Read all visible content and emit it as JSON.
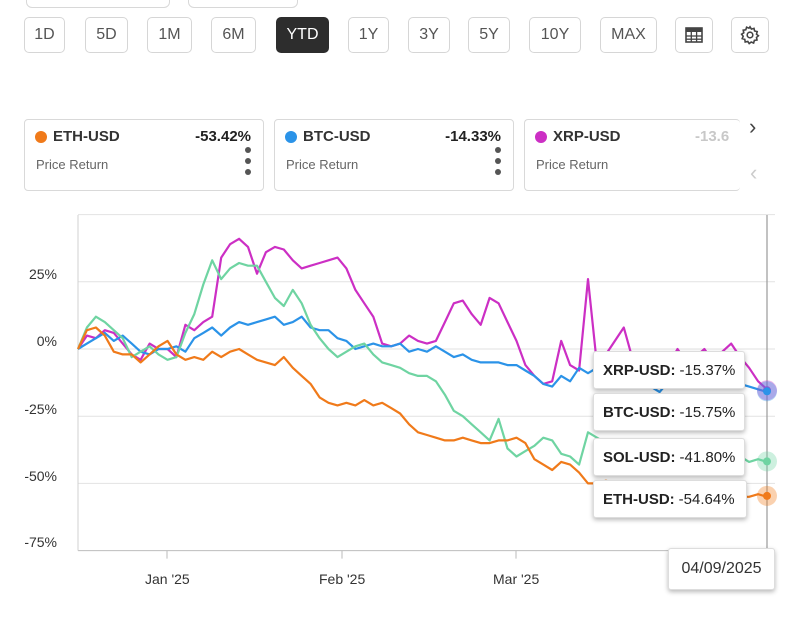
{
  "ranges": [
    {
      "label": "1D",
      "active": false
    },
    {
      "label": "5D",
      "active": false
    },
    {
      "label": "1M",
      "active": false
    },
    {
      "label": "6M",
      "active": false
    },
    {
      "label": "YTD",
      "active": true
    },
    {
      "label": "1Y",
      "active": false
    },
    {
      "label": "3Y",
      "active": false
    },
    {
      "label": "5Y",
      "active": false
    },
    {
      "label": "10Y",
      "active": false
    },
    {
      "label": "MAX",
      "active": false
    }
  ],
  "toolbar": {
    "table_icon": "table-icon",
    "settings_icon": "gear-icon"
  },
  "cards": [
    {
      "symbol": "ETH-USD",
      "value": "-53.42%",
      "metric": "Price Return",
      "color": "#f07a1a"
    },
    {
      "symbol": "BTC-USD",
      "value": "-14.33%",
      "metric": "Price Return",
      "color": "#2b93e8"
    },
    {
      "symbol": "XRP-USD",
      "value": "-13.6",
      "metric": "Price Return",
      "color": "#cc2fc4"
    }
  ],
  "nav": {
    "next": "›",
    "prev": "‹"
  },
  "tooltip": {
    "items": [
      {
        "symbol": "XRP-USD:",
        "value": "-15.37%"
      },
      {
        "symbol": "BTC-USD:",
        "value": "-15.75%"
      },
      {
        "symbol": "SOL-USD:",
        "value": "-41.80%"
      },
      {
        "symbol": "ETH-USD:",
        "value": "-54.64%"
      }
    ],
    "date": "04/09/2025"
  },
  "chart_data": {
    "type": "line",
    "x_ticks": [
      "Jan '25",
      "Feb '25",
      "Mar '25"
    ],
    "y_ticks": [
      "25%",
      "0%",
      "-25%",
      "-50%",
      "-75%"
    ],
    "y_tick_values": [
      25,
      0,
      -25,
      -50,
      -75
    ],
    "ylim": [
      -75,
      50
    ],
    "grid": true,
    "series": [
      {
        "name": "XRP-USD",
        "color": "#cc2fc4",
        "values": [
          0,
          5,
          4,
          7,
          6,
          2,
          -2,
          -4,
          2,
          0,
          0,
          -3,
          9,
          7,
          10,
          12,
          34,
          39,
          41,
          38,
          28,
          36,
          38,
          37,
          33,
          30,
          31,
          32,
          33,
          34,
          30,
          22,
          17,
          12,
          2,
          1,
          2,
          5,
          3,
          2,
          3,
          10,
          17,
          18,
          13,
          9,
          19,
          17,
          10,
          3,
          -6,
          -10,
          -13,
          -12,
          3,
          -6,
          -8,
          26,
          -6,
          -2,
          3,
          8,
          -4,
          -4,
          -13,
          -11,
          -6,
          0,
          -5,
          -3,
          0,
          -5,
          -1,
          2,
          -3,
          -7,
          -12,
          -15
        ]
      },
      {
        "name": "BTC-USD",
        "color": "#2b93e8",
        "values": [
          0,
          2,
          4,
          6,
          3,
          5,
          2,
          -1,
          -2,
          0,
          0,
          1,
          -1,
          4,
          6,
          8,
          5,
          8,
          10,
          9,
          10,
          11,
          12,
          9,
          10,
          12,
          8,
          7,
          7,
          4,
          3,
          0,
          1,
          2,
          1,
          1,
          2,
          -1,
          0,
          -1,
          1,
          -1,
          -3,
          -2,
          -4,
          -5,
          -5,
          -5,
          -6,
          -6,
          -8,
          -10,
          -13,
          -14,
          -10,
          -12,
          -7,
          -9,
          -7,
          -10,
          -9,
          -6,
          -9,
          -8,
          -14,
          -16,
          -12,
          -14,
          -10,
          -12,
          -11,
          -13,
          -14,
          -12,
          -13,
          -14,
          -15,
          -16
        ]
      },
      {
        "name": "SOL-USD",
        "color": "#6fd4a2",
        "values": [
          0,
          8,
          12,
          10,
          7,
          4,
          -3,
          -1,
          1,
          -2,
          -4,
          -3,
          6,
          13,
          24,
          33,
          26,
          30,
          32,
          31,
          31,
          25,
          19,
          16,
          22,
          17,
          9,
          4,
          0,
          -3,
          -1,
          1,
          2,
          -2,
          -5,
          -6,
          -7,
          -9,
          -10,
          -10,
          -12,
          -17,
          -23,
          -25,
          -28,
          -31,
          -34,
          -26,
          -37,
          -40,
          -38,
          -36,
          -33,
          -34,
          -39,
          -40,
          -43,
          -31,
          -33,
          -35,
          -36,
          -37,
          -38,
          -38,
          -40,
          -41,
          -41,
          -43,
          -41,
          -39,
          -40,
          -42,
          -43,
          -41,
          -40,
          -42,
          -41,
          -42
        ]
      },
      {
        "name": "ETH-USD",
        "color": "#f07a1a",
        "values": [
          0,
          7,
          8,
          5,
          -1,
          -2,
          -2,
          -5,
          -2,
          1,
          3,
          -2,
          -4,
          -3,
          -4,
          -1,
          -3,
          -1,
          0,
          -2,
          -4,
          -5,
          -6,
          -3,
          -7,
          -10,
          -13,
          -18,
          -20,
          -21,
          -20,
          -21,
          -19,
          -21,
          -20,
          -22,
          -24,
          -28,
          -31,
          -32,
          -33,
          -34,
          -34,
          -33,
          -34,
          -35,
          -35,
          -34,
          -34,
          -33,
          -35,
          -41,
          -43,
          -45,
          -42,
          -43,
          -46,
          -50,
          -50,
          -49,
          -50,
          -51,
          -51,
          -51,
          -52,
          -53,
          -53,
          -54,
          -52,
          -54,
          -55,
          -54,
          -54,
          -54,
          -55,
          -55,
          -54,
          -55
        ]
      }
    ]
  }
}
